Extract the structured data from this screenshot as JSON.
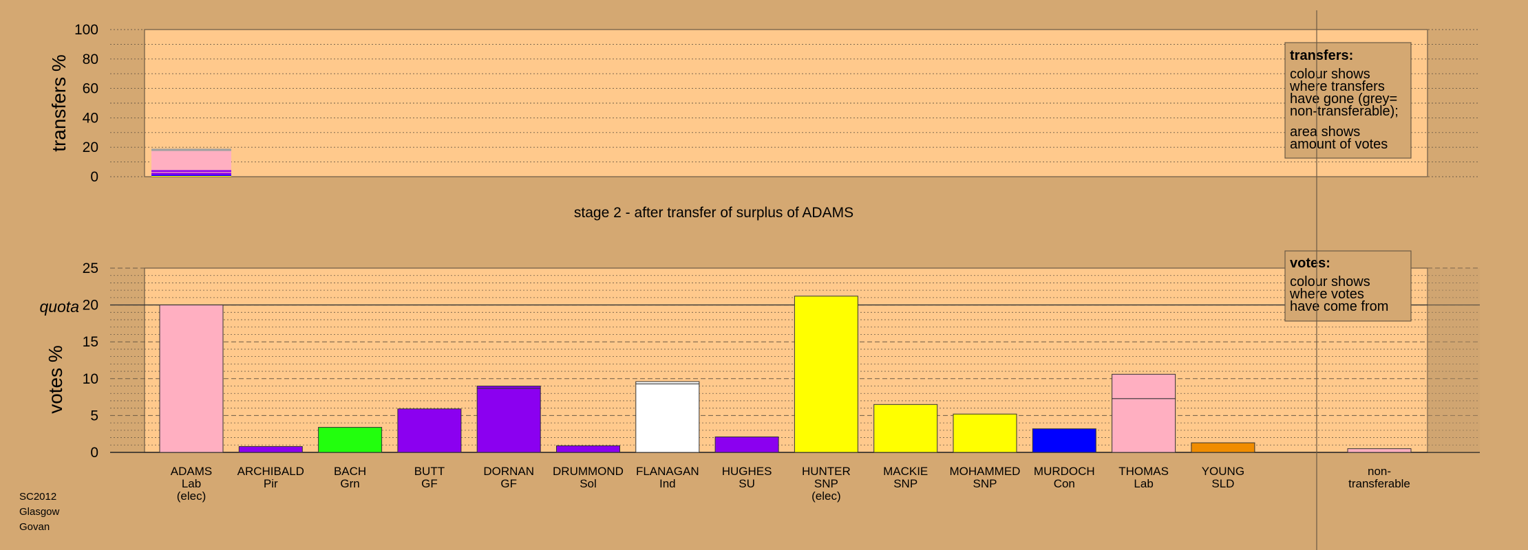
{
  "stage_title": "stage 2 - after transfer of surplus of ADAMS",
  "footer": {
    "line1": "SC2012",
    "line2": "Glasgow",
    "line3": "Govan"
  },
  "legends": {
    "transfers": {
      "title": "transfers:",
      "lines": [
        "colour shows",
        "where transfers",
        "have gone (grey=",
        "non-transferable);"
      ],
      "lines2": [
        "area shows",
        "amount of votes"
      ]
    },
    "votes": {
      "title": "votes:",
      "lines": [
        "colour shows",
        "where votes",
        "have come from"
      ]
    }
  },
  "colors": {
    "background": "#d4a872",
    "panel": "#ffc98c",
    "Lab": "#ffafc1",
    "Pir": "#8b00f0",
    "Grn": "#22ff0d",
    "GF": "#8b00f0",
    "Sol": "#8b00f0",
    "Ind": "#ffffff",
    "SU": "#8b00f0",
    "SNP": "#ffff00",
    "Con": "#0000ff",
    "SLD": "#f08c00",
    "nontransferable": "#a0a0a0"
  },
  "chart_data": [
    {
      "type": "bar",
      "name": "transfers",
      "ylabel": "transfers %",
      "ylim": [
        0,
        100
      ],
      "yticks": [
        0,
        20,
        40,
        60,
        80,
        100
      ],
      "categories": [
        "ADAMS"
      ],
      "stacked_segments": [
        {
          "party": "SNP",
          "value": 0.5
        },
        {
          "party": "Con",
          "value": 0.7
        },
        {
          "party": "Pir",
          "value": 1.5
        },
        {
          "party": "Lab",
          "value": 0.5
        },
        {
          "party": "Pir",
          "value": 1.3
        },
        {
          "party": "Lab",
          "value": 13.0
        },
        {
          "party": "nontransferable",
          "value": 1.5
        }
      ]
    },
    {
      "type": "bar",
      "name": "votes",
      "ylabel": "votes %",
      "ylim": [
        0,
        25
      ],
      "yticks": [
        0,
        5,
        10,
        15,
        20,
        25
      ],
      "quota": {
        "label": "quota",
        "value": 20
      },
      "candidates": [
        {
          "name": "ADAMS",
          "party": "Lab",
          "note": "(elec)",
          "value": 20.0,
          "segments": [
            20.0
          ]
        },
        {
          "name": "ARCHIBALD",
          "party": "Pir",
          "note": "",
          "value": 0.8,
          "segments": [
            0.8
          ]
        },
        {
          "name": "BACH",
          "party": "Grn",
          "note": "",
          "value": 3.4,
          "segments": [
            3.4
          ]
        },
        {
          "name": "BUTT",
          "party": "GF",
          "note": "",
          "value": 5.9,
          "segments": [
            5.9
          ]
        },
        {
          "name": "DORNAN",
          "party": "GF",
          "note": "",
          "value": 9.0,
          "segments": [
            8.7,
            0.3
          ]
        },
        {
          "name": "DRUMMOND",
          "party": "Sol",
          "note": "",
          "value": 0.9,
          "segments": [
            0.9
          ]
        },
        {
          "name": "FLANAGAN",
          "party": "Ind",
          "note": "",
          "value": 9.6,
          "segments": [
            9.3,
            0.3
          ]
        },
        {
          "name": "HUGHES",
          "party": "SU",
          "note": "",
          "value": 2.1,
          "segments": [
            2.1
          ]
        },
        {
          "name": "HUNTER",
          "party": "SNP",
          "note": "(elec)",
          "value": 21.2,
          "segments": [
            21.2
          ]
        },
        {
          "name": "MACKIE",
          "party": "SNP",
          "note": "",
          "value": 6.5,
          "segments": [
            6.5
          ]
        },
        {
          "name": "MOHAMMED",
          "party": "SNP",
          "note": "",
          "value": 5.2,
          "segments": [
            5.2
          ]
        },
        {
          "name": "MURDOCH",
          "party": "Con",
          "note": "",
          "value": 3.2,
          "segments": [
            3.2
          ]
        },
        {
          "name": "THOMAS",
          "party": "Lab",
          "note": "",
          "value": 10.6,
          "segments": [
            7.3,
            3.3
          ]
        },
        {
          "name": "YOUNG",
          "party": "SLD",
          "note": "",
          "value": 1.3,
          "segments": [
            1.3
          ]
        }
      ],
      "nontransferable": {
        "line1": "non-",
        "line2": "transferable",
        "value": 0.5
      }
    }
  ]
}
